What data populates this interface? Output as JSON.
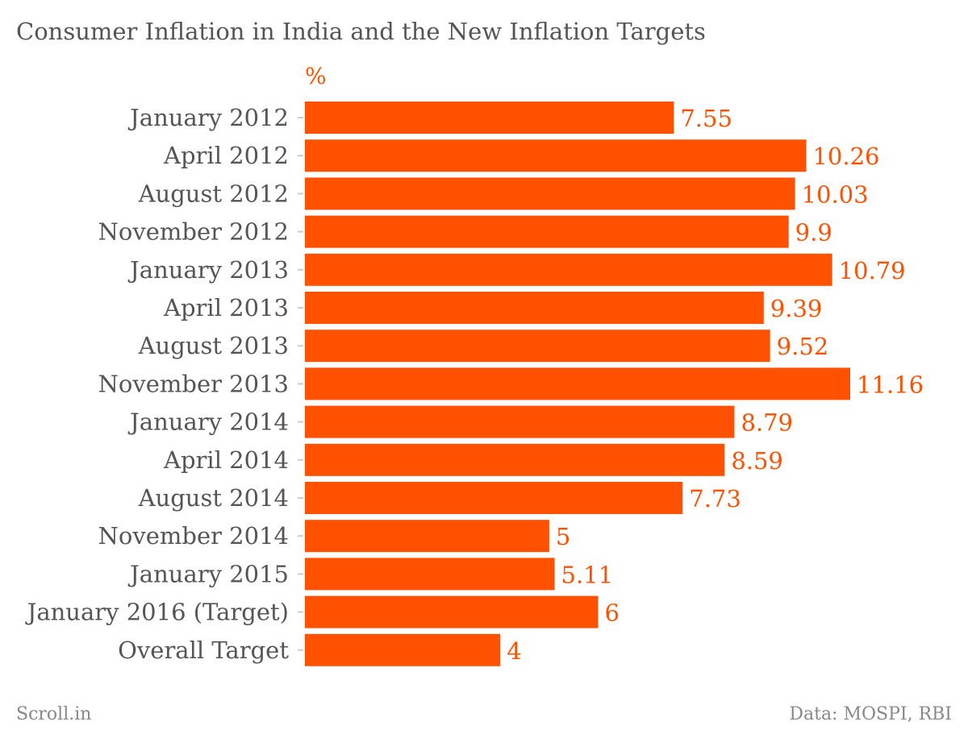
{
  "footer": {
    "source": "Scroll.in",
    "credit": "Data: MOSPI, RBI"
  },
  "colors": {
    "bar": "#ff5100",
    "value_label": "#ff5100",
    "unit_label": "#ff5100",
    "category_label": "#555555",
    "tick": "#cccccc"
  },
  "chart_data": {
    "type": "bar",
    "orientation": "horizontal",
    "title": "Consumer Inflation in India and the New Inflation Targets",
    "unit": "%",
    "categories": [
      "January 2012",
      "April 2012",
      "August 2012",
      "November 2012",
      "January 2013",
      "April 2013",
      "August 2013",
      "November 2013",
      "January 2014",
      "April 2014",
      "August 2014",
      "November 2014",
      "January 2015",
      "January 2016 (Target)",
      "Overall Target"
    ],
    "values": [
      7.55,
      10.26,
      10.03,
      9.9,
      10.79,
      9.39,
      9.52,
      11.16,
      8.79,
      8.59,
      7.73,
      5,
      5.11,
      6,
      4
    ],
    "value_labels": [
      "7.55",
      "10.26",
      "10.03",
      "9.9",
      "10.79",
      "9.39",
      "9.52",
      "11.16",
      "8.79",
      "8.59",
      "7.73",
      "5",
      "5.11",
      "6",
      "4"
    ],
    "xlim": [
      0,
      11.16
    ],
    "grid": false,
    "legend": "none"
  }
}
